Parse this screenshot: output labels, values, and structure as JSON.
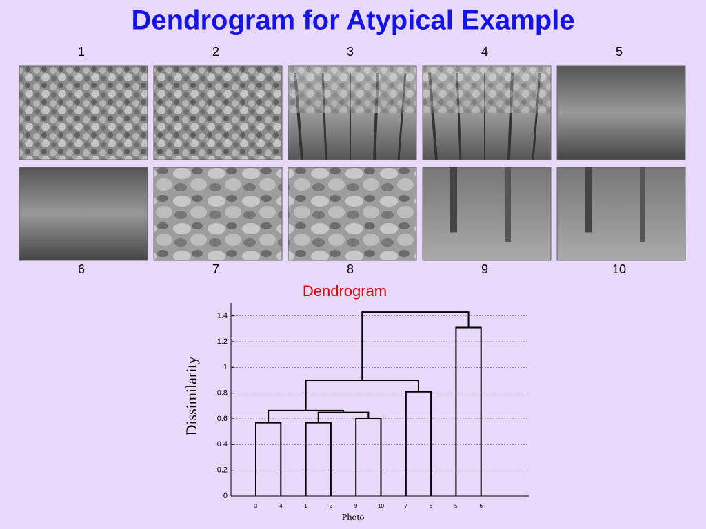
{
  "title": "Dendrogram for Atypical Example",
  "photos": [
    {
      "label": "1"
    },
    {
      "label": "2"
    },
    {
      "label": "3"
    },
    {
      "label": "4"
    },
    {
      "label": "5"
    },
    {
      "label": "6"
    },
    {
      "label": "7"
    },
    {
      "label": "8"
    },
    {
      "label": "9"
    },
    {
      "label": "10"
    }
  ],
  "chart_data": {
    "type": "dendrogram",
    "title": "Dendrogram",
    "xlabel": "Photo",
    "ylabel": "Dissimilarity",
    "leaves": [
      "3",
      "4",
      "1",
      "2",
      "9",
      "10",
      "7",
      "8",
      "5",
      "6"
    ],
    "merges": [
      {
        "left": 0,
        "right": 1,
        "height": 0.57
      },
      {
        "left": 2,
        "right": 3,
        "height": 0.57
      },
      {
        "left": 4,
        "right": 5,
        "height": 0.6
      },
      {
        "left": 11,
        "right": 12,
        "height": 0.65
      },
      {
        "left": 10,
        "right": 13,
        "height": 0.665
      },
      {
        "left": 6,
        "right": 7,
        "height": 0.81
      },
      {
        "left": 14,
        "right": 15,
        "height": 0.9
      },
      {
        "left": 8,
        "right": 9,
        "height": 1.31
      },
      {
        "left": 16,
        "right": 17,
        "height": 1.43
      }
    ],
    "ylim": [
      0,
      1.5
    ],
    "yticks": [
      0,
      0.2,
      0.4,
      0.6,
      0.8,
      1,
      1.2,
      1.4
    ],
    "grid": true,
    "color": "#000000"
  }
}
